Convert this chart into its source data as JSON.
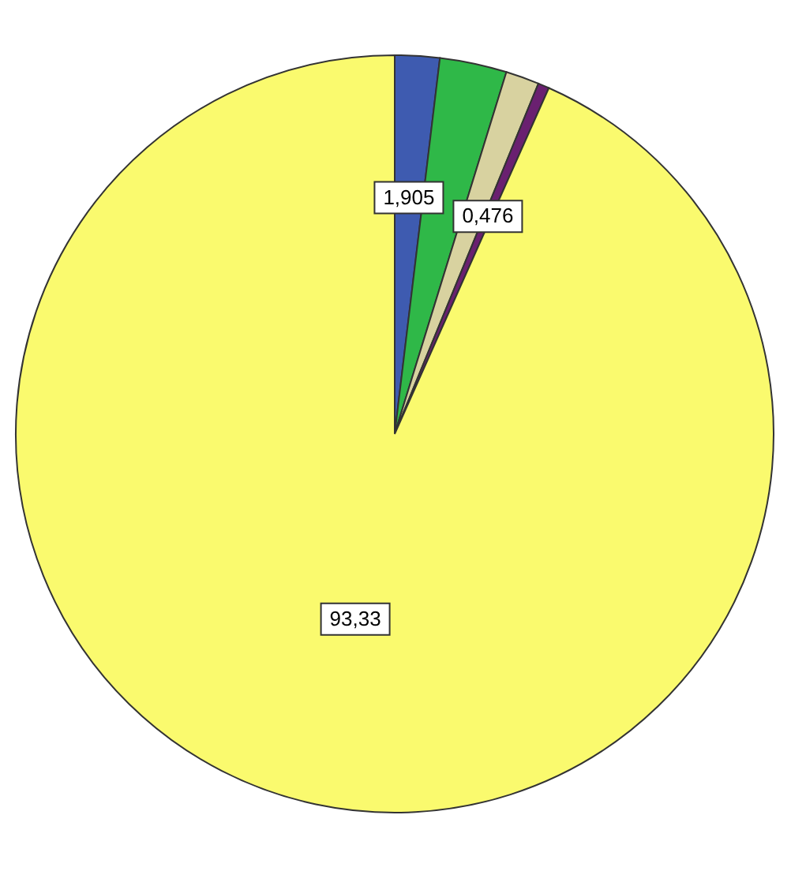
{
  "chart_data": {
    "type": "pie",
    "categories": [
      null,
      null,
      null,
      null,
      null
    ],
    "values": [
      1.905,
      2.857,
      1.429,
      0.476,
      93.33
    ],
    "colors": [
      "#3e5bb0",
      "#2fb848",
      "#d8d2a0",
      "#6a2070",
      "#fafa6e"
    ],
    "value_labels": [
      "1,905",
      null,
      null,
      "0,476",
      "93,33"
    ],
    "legend": false
  }
}
